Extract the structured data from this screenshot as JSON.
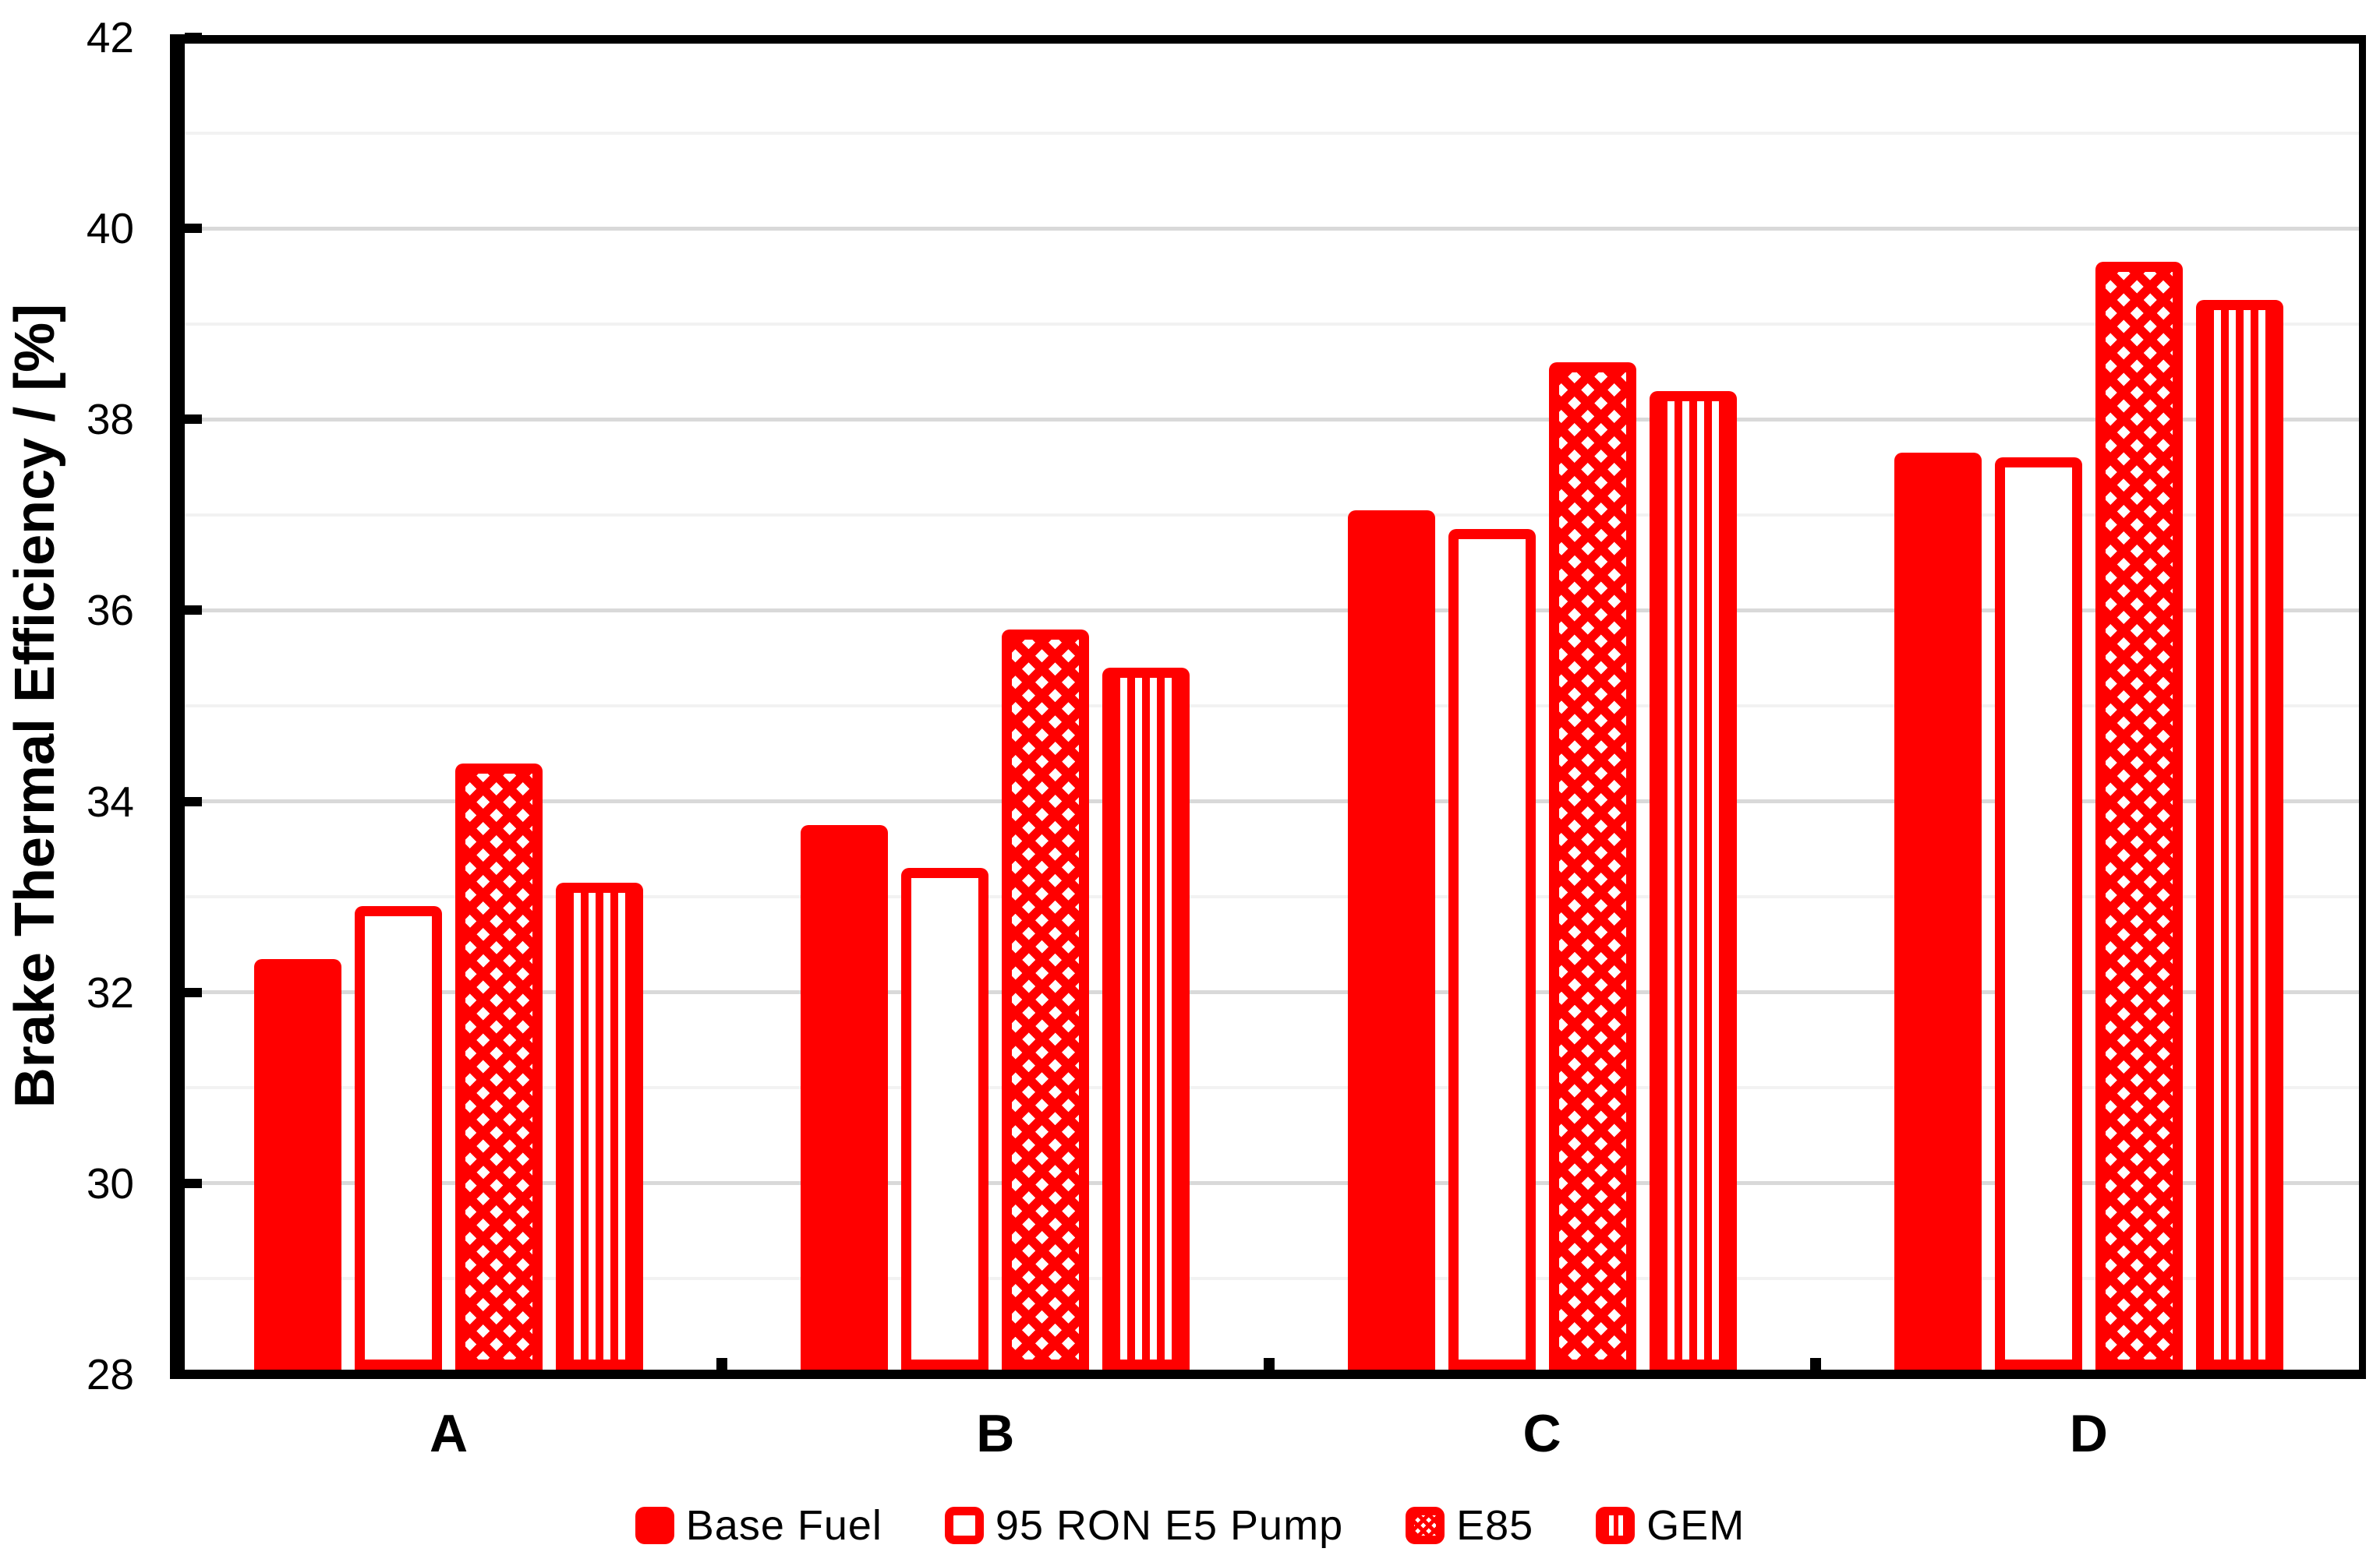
{
  "chart_data": {
    "type": "bar",
    "ylabel": "Brake Thermal Efficiency / [%]",
    "xlabel": "",
    "categories": [
      "A",
      "B",
      "C",
      "D"
    ],
    "series": [
      {
        "name": "Base Fuel",
        "pattern": "solid-red",
        "values": [
          32.35,
          33.75,
          37.05,
          37.65
        ]
      },
      {
        "name": "95 RON E5 Pump",
        "pattern": "white-red-outline",
        "values": [
          32.9,
          33.3,
          36.85,
          37.6
        ]
      },
      {
        "name": "E85",
        "pattern": "red-diamond-check",
        "values": [
          34.4,
          35.8,
          38.6,
          39.65
        ]
      },
      {
        "name": "GEM",
        "pattern": "red-vert-stripes",
        "values": [
          33.15,
          35.4,
          38.3,
          39.25
        ]
      }
    ],
    "ylim": [
      28,
      42
    ],
    "ytick_step": 2,
    "ytick_labels": [
      "28",
      "30",
      "32",
      "34",
      "36",
      "38",
      "40",
      "42"
    ],
    "minor_grid_step": 1,
    "grid": "horizontal, minor every 1 / major every 2",
    "legend_position": "bottom-center",
    "colors": {
      "bar_red": "#ff0000",
      "major_gridline": "#d9d9d9",
      "minor_gridline": "#f2f2f2",
      "axis": "#000000",
      "background": "#ffffff",
      "text": "#000000"
    }
  },
  "legend": {
    "items": [
      {
        "label": "Base Fuel"
      },
      {
        "label": "95 RON E5 Pump"
      },
      {
        "label": "E85"
      },
      {
        "label": "GEM"
      }
    ]
  }
}
